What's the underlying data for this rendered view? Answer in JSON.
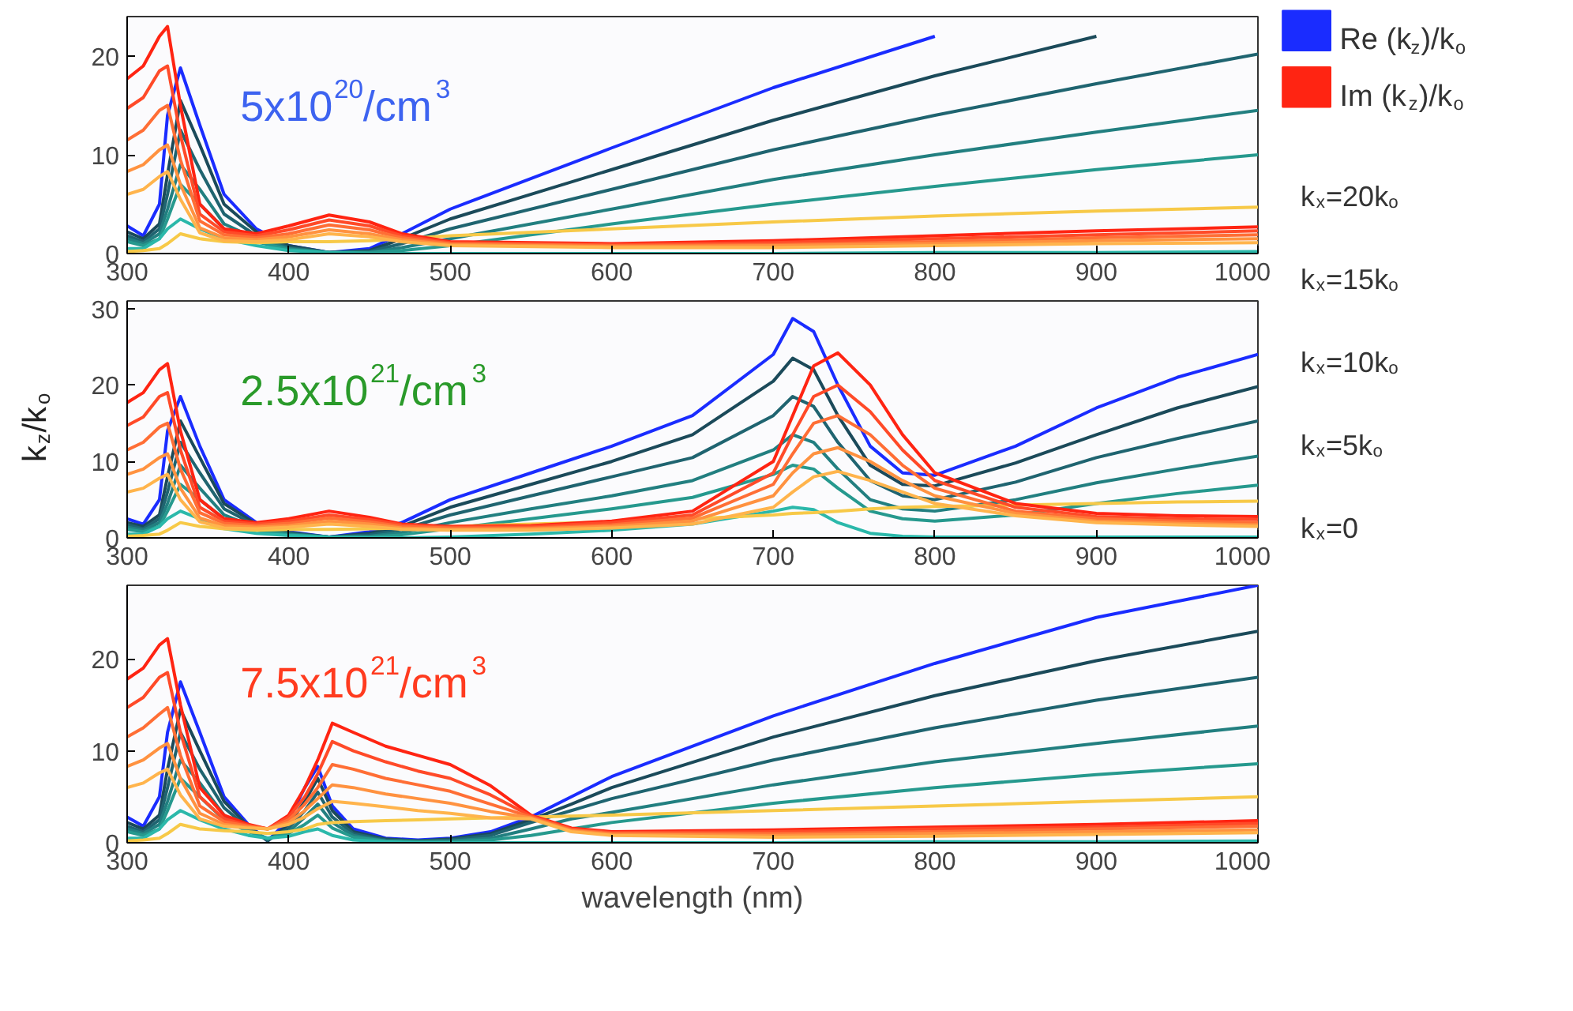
{
  "chart_data": [
    {
      "type": "line",
      "title": "5x10$^{20}$/cm$^{3}$",
      "xlim": [
        300,
        1000
      ],
      "xticks": [
        300,
        400,
        500,
        600,
        700,
        800,
        900,
        1000
      ],
      "ylim": [
        0,
        24
      ],
      "yticks": [
        0,
        10,
        20
      ],
      "legend": "right",
      "grid": false,
      "annotations": [
        "k$_{x}$=20k$_{o}$",
        "k$_{x}$=15k$_{o}$",
        "k$_{x}$=10k$_{o}$",
        "k$_{x}$=5k$_{o}$",
        "k$_{x}$=0"
      ],
      "x": [
        300,
        310,
        320,
        325,
        333,
        345,
        360,
        380,
        400,
        425,
        450,
        470,
        500,
        600,
        700,
        800,
        900,
        1000
      ],
      "series": [
        {
          "name": "Re (k$_{z}$)/k$_{o}$",
          "color": "#1a2cff",
          "values": [
            2.8,
            1.8,
            5,
            14,
            18.8,
            13,
            6,
            2.5,
            0.8,
            0.1,
            0.5,
            2,
            4.5,
            10.7,
            16.8,
            22,
            null,
            null
          ]
        },
        {
          "color": "#1b4a5a",
          "values": [
            2.2,
            1.5,
            3,
            8,
            15.5,
            11,
            5,
            2.2,
            0.8,
            0.1,
            0.3,
            1.5,
            3.5,
            8.5,
            13.5,
            18,
            22,
            null
          ]
        },
        {
          "color": "#1f6470",
          "values": [
            1.8,
            1.2,
            2.5,
            6,
            12.5,
            8.5,
            4,
            1.8,
            0.6,
            0.1,
            0.2,
            1,
            2.5,
            6.5,
            10.5,
            14,
            17.2,
            20.2
          ]
        },
        {
          "color": "#227f80",
          "values": [
            1.5,
            1,
            2,
            4.5,
            9,
            6.5,
            3,
            1.5,
            0.5,
            0.1,
            0.1,
            0.6,
            1.5,
            4.5,
            7.5,
            10,
            12.3,
            14.5
          ]
        },
        {
          "color": "#26998e",
          "values": [
            1.2,
            0.8,
            1.5,
            3.5,
            7,
            5,
            2.5,
            1.2,
            0.4,
            0.1,
            0.1,
            0.3,
            0.8,
            3,
            5,
            6.8,
            8.5,
            10
          ]
        },
        {
          "color": "#2bb8aa",
          "values": [
            0.5,
            0.5,
            1.5,
            2.5,
            3.5,
            2.5,
            1.5,
            0.8,
            0.3,
            0.1,
            0,
            0,
            0,
            0,
            0,
            0.1,
            0.1,
            0.2
          ]
        },
        {
          "color": "#f7c948",
          "values": [
            0.2,
            0.3,
            0.5,
            1,
            2,
            1.5,
            1.2,
            1.1,
            1.2,
            1.2,
            1.3,
            1.5,
            1.8,
            2.5,
            3.2,
            3.8,
            4.3,
            4.7
          ]
        },
        {
          "name": "Im (k$_{z}$)/k$_{o}$",
          "color": "#ff2412",
          "values": [
            17.7,
            19,
            22,
            23,
            15,
            5,
            2.5,
            2,
            2.8,
            3.9,
            3.2,
            2,
            1.2,
            1,
            1.3,
            1.8,
            2.3,
            2.7
          ]
        },
        {
          "color": "#ff4a28",
          "values": [
            14.7,
            15.8,
            18.5,
            19,
            12,
            4,
            2.2,
            1.8,
            2.4,
            3.4,
            2.8,
            1.8,
            1.1,
            0.9,
            1.1,
            1.5,
            1.9,
            2.3
          ]
        },
        {
          "color": "#ff6e35",
          "values": [
            11.5,
            12.5,
            14.5,
            15,
            9.5,
            3.3,
            1.9,
            1.6,
            2,
            2.9,
            2.4,
            1.6,
            1,
            0.8,
            0.9,
            1.2,
            1.6,
            1.9
          ]
        },
        {
          "color": "#ff9240",
          "values": [
            8.3,
            9,
            10.5,
            11,
            7,
            2.6,
            1.6,
            1.4,
            1.7,
            2.4,
            2,
            1.4,
            0.9,
            0.7,
            0.8,
            1,
            1.3,
            1.5
          ]
        },
        {
          "color": "#ffb44c",
          "values": [
            6,
            6.5,
            7.8,
            8.3,
            5.5,
            2.1,
            1.3,
            1.2,
            1.4,
            2,
            1.7,
            1.2,
            0.8,
            0.6,
            0.6,
            0.8,
            1,
            1.1
          ]
        }
      ]
    },
    {
      "type": "line",
      "title": "2.5x10$^{21}$/cm$^{3}$",
      "ylabel": "k$_{z}$/k$_{o}$",
      "xlim": [
        300,
        1000
      ],
      "xticks": [
        300,
        400,
        500,
        600,
        700,
        800,
        900,
        1000
      ],
      "ylim": [
        0,
        31
      ],
      "yticks": [
        0,
        10,
        20,
        30
      ],
      "grid": false,
      "x": [
        300,
        310,
        320,
        325,
        333,
        345,
        360,
        380,
        400,
        425,
        450,
        470,
        500,
        550,
        600,
        650,
        700,
        712,
        725,
        740,
        760,
        780,
        800,
        850,
        900,
        950,
        1000
      ],
      "series": [
        {
          "color": "#1a2cff",
          "values": [
            2.5,
            1.8,
            5,
            14,
            18.5,
            12,
            5,
            2,
            0.8,
            0.1,
            0.8,
            2,
            5,
            8.5,
            12,
            16,
            24,
            28.7,
            27,
            20,
            12,
            8.5,
            8.2,
            12,
            17,
            21,
            24
          ]
        },
        {
          "color": "#1b4a5a",
          "values": [
            2,
            1.5,
            3,
            8,
            15.3,
            10.5,
            4.5,
            1.8,
            0.7,
            0.1,
            0.6,
            1.5,
            4,
            7,
            10,
            13.5,
            20.5,
            23.5,
            22,
            16,
            9.5,
            7,
            6.8,
            9.8,
            13.5,
            17,
            19.8
          ]
        },
        {
          "color": "#1f6470",
          "values": [
            1.7,
            1.2,
            2.5,
            6,
            12.5,
            8.5,
            3.8,
            1.6,
            0.6,
            0.1,
            0.4,
            1.1,
            3,
            5.5,
            8,
            10.5,
            16,
            18.5,
            17.2,
            12.5,
            7.5,
            5.5,
            5,
            7.3,
            10.5,
            13,
            15.3
          ]
        },
        {
          "color": "#227f80",
          "values": [
            1.4,
            1,
            2,
            4.5,
            9.5,
            6.5,
            3,
            1.3,
            0.5,
            0.1,
            0.2,
            0.7,
            2,
            3.8,
            5.5,
            7.5,
            11.5,
            13.5,
            12.5,
            9,
            5,
            3.8,
            3.5,
            5,
            7.2,
            9,
            10.7
          ]
        },
        {
          "color": "#26998e",
          "values": [
            1.1,
            0.8,
            1.5,
            3.5,
            7,
            5,
            2.5,
            1,
            0.4,
            0.1,
            0.1,
            0.4,
            1.2,
            2.5,
            3.8,
            5.3,
            8.3,
            9.5,
            9,
            6.5,
            3.5,
            2.5,
            2.2,
            3,
            4.5,
            5.8,
            6.9
          ]
        },
        {
          "color": "#2bb8aa",
          "values": [
            0.5,
            0.5,
            1.5,
            2.5,
            3.5,
            2.5,
            1.2,
            0.6,
            0.3,
            0.1,
            0,
            0,
            0.1,
            0.5,
            1,
            1.8,
            3.5,
            4,
            3.7,
            2,
            0.6,
            0.2,
            0.1,
            0.1,
            0.1,
            0.1,
            0.1
          ]
        },
        {
          "color": "#f7c948",
          "values": [
            0.2,
            0.3,
            0.5,
            1,
            2,
            1.5,
            1.2,
            1,
            1.1,
            1.1,
            1.2,
            1.3,
            1.5,
            1.8,
            2.1,
            2.5,
            3,
            3.2,
            3.3,
            3.5,
            3.8,
            4,
            4.1,
            4.3,
            4.5,
            4.7,
            4.8
          ]
        },
        {
          "color": "#ff2412",
          "values": [
            17.7,
            19,
            22,
            22.8,
            14,
            5,
            2.5,
            2,
            2.5,
            3.5,
            2.7,
            1.8,
            1.5,
            1.6,
            2.2,
            3.5,
            10,
            16,
            22.5,
            24.2,
            20,
            13.5,
            8.5,
            4.5,
            3.2,
            2.9,
            2.8
          ]
        },
        {
          "color": "#ff4a28",
          "values": [
            14.7,
            15.8,
            18.5,
            19,
            11.5,
            4,
            2.2,
            1.8,
            2.2,
            3,
            2.4,
            1.7,
            1.4,
            1.5,
            2,
            3,
            8.5,
            13.5,
            18.5,
            20,
            16.5,
            11.5,
            7.5,
            4,
            2.8,
            2.5,
            2.4
          ]
        },
        {
          "color": "#ff6e35",
          "values": [
            11.5,
            12.5,
            14.5,
            15,
            9,
            3.3,
            1.9,
            1.6,
            1.9,
            2.6,
            2.1,
            1.5,
            1.3,
            1.3,
            1.7,
            2.6,
            7,
            11,
            15,
            16,
            13.5,
            9.5,
            6.5,
            3.5,
            2.5,
            2.2,
            2
          ]
        },
        {
          "color": "#ff9240",
          "values": [
            8.3,
            9,
            10.5,
            11,
            6.5,
            2.6,
            1.6,
            1.4,
            1.6,
            2.2,
            1.8,
            1.3,
            1.1,
            1.2,
            1.5,
            2.2,
            5.5,
            8.5,
            11,
            11.8,
            10,
            7.5,
            5.5,
            3.2,
            2.2,
            1.9,
            1.7
          ]
        },
        {
          "color": "#ffb44c",
          "values": [
            6,
            6.5,
            7.8,
            8.3,
            5,
            2.1,
            1.3,
            1.2,
            1.4,
            1.8,
            1.5,
            1.1,
            1,
            1,
            1.3,
            1.8,
            4,
            6,
            8,
            8.7,
            7.5,
            6,
            4.5,
            2.9,
            2,
            1.7,
            1.5
          ]
        }
      ]
    },
    {
      "type": "line",
      "title": "7.5x10$^{21}$/cm$^{3}$",
      "xlabel": "wavelength (nm)",
      "xlim": [
        300,
        1000
      ],
      "xticks": [
        300,
        400,
        500,
        600,
        700,
        800,
        900,
        1000
      ],
      "ylim": [
        0,
        28
      ],
      "yticks": [
        0,
        10,
        20
      ],
      "grid": false,
      "x": [
        300,
        310,
        320,
        325,
        333,
        345,
        360,
        375,
        387,
        400,
        410,
        418,
        427,
        440,
        460,
        480,
        500,
        525,
        550,
        575,
        600,
        700,
        800,
        900,
        1000
      ],
      "series": [
        {
          "color": "#1a2cff",
          "values": [
            2.8,
            1.8,
            5,
            12,
            17.5,
            12,
            5,
            2,
            0.2,
            2.5,
            6,
            8.3,
            4,
            1.5,
            0.5,
            0.3,
            0.5,
            1.2,
            2.8,
            5,
            7.2,
            13.8,
            19.5,
            24.5,
            28
          ]
        },
        {
          "color": "#1b4a5a",
          "values": [
            2.2,
            1.5,
            3,
            8,
            14.5,
            10,
            4.5,
            1.8,
            0.2,
            2,
            4.5,
            7,
            3.5,
            1.2,
            0.4,
            0.2,
            0.4,
            1,
            2.5,
            4.2,
            6,
            11.5,
            16,
            19.8,
            23
          ]
        },
        {
          "color": "#1f6470",
          "values": [
            1.8,
            1.2,
            2.5,
            6,
            12,
            8,
            3.8,
            1.6,
            0.3,
            1.6,
            3.5,
            5.5,
            2.8,
            1,
            0.3,
            0.2,
            0.3,
            0.8,
            2.2,
            3.5,
            4.8,
            9,
            12.5,
            15.5,
            18
          ]
        },
        {
          "color": "#227f80",
          "values": [
            1.5,
            1,
            2,
            4.5,
            9,
            6.5,
            3,
            1.4,
            0.4,
            1.2,
            2.8,
            4.2,
            2.2,
            0.8,
            0.2,
            0.1,
            0.2,
            0.5,
            1.5,
            2.6,
            3.3,
            6.3,
            8.8,
            10.8,
            12.7
          ]
        },
        {
          "color": "#26998e",
          "values": [
            1.2,
            0.8,
            1.5,
            3.5,
            7,
            5,
            2.5,
            1.2,
            0.5,
            1,
            2,
            3,
            1.6,
            0.6,
            0.2,
            0.1,
            0.1,
            0.3,
            0.8,
            1.5,
            2.2,
            4.3,
            6,
            7.4,
            8.6
          ]
        },
        {
          "color": "#2bb8aa",
          "values": [
            0.5,
            0.5,
            1.5,
            2.5,
            3.5,
            2.5,
            1.5,
            0.8,
            0.5,
            0.7,
            1.2,
            1.5,
            0.8,
            0.3,
            0.1,
            0,
            0,
            0,
            0,
            0,
            0,
            0,
            0.1,
            0.1,
            0.2
          ]
        },
        {
          "color": "#f7c948",
          "values": [
            0.2,
            0.3,
            0.5,
            1,
            2,
            1.5,
            1.3,
            1.2,
            1,
            1.2,
            1.5,
            2,
            2.2,
            2.3,
            2.4,
            2.5,
            2.6,
            2.7,
            2.8,
            2.9,
            3,
            3.5,
            4,
            4.5,
            5
          ]
        },
        {
          "color": "#ff2412",
          "values": [
            17.8,
            19,
            21.5,
            22.2,
            15,
            6,
            3,
            2,
            1.5,
            3,
            6,
            9,
            13,
            12,
            10.5,
            9.5,
            8.5,
            6.2,
            3,
            1.6,
            1.2,
            1.4,
            1.7,
            2,
            2.4
          ]
        },
        {
          "color": "#ff4a28",
          "values": [
            14.7,
            15.8,
            18,
            18.5,
            12,
            5,
            2.6,
            1.9,
            1.5,
            2.8,
            5,
            7.5,
            11,
            10,
            8.8,
            7.8,
            7,
            5.2,
            2.9,
            1.5,
            1.1,
            1.2,
            1.5,
            1.7,
            2.1
          ]
        },
        {
          "color": "#ff6e35",
          "values": [
            11.5,
            12.5,
            14,
            14.7,
            9.5,
            4,
            2.3,
            1.8,
            1.5,
            2.5,
            4.2,
            6,
            8.5,
            8,
            7,
            6.3,
            5.6,
            4.2,
            2.8,
            1.4,
            1,
            1,
            1.2,
            1.5,
            1.8
          ]
        },
        {
          "color": "#ff9240",
          "values": [
            8.3,
            9,
            10.3,
            10.8,
            7,
            3.2,
            2,
            1.7,
            1.5,
            2.2,
            3.5,
            4.8,
            6.3,
            6,
            5.3,
            4.8,
            4.3,
            3.4,
            2.7,
            1.3,
            0.9,
            0.8,
            1,
            1.2,
            1.4
          ]
        },
        {
          "color": "#ffb44c",
          "values": [
            6,
            6.5,
            7.6,
            8,
            5.2,
            2.6,
            1.8,
            1.6,
            1.5,
            2,
            2.8,
            3.7,
            4.5,
            4.3,
            3.9,
            3.5,
            3.2,
            2.7,
            2.6,
            1.2,
            0.8,
            0.6,
            0.7,
            0.9,
            1.1
          ]
        }
      ]
    }
  ]
}
